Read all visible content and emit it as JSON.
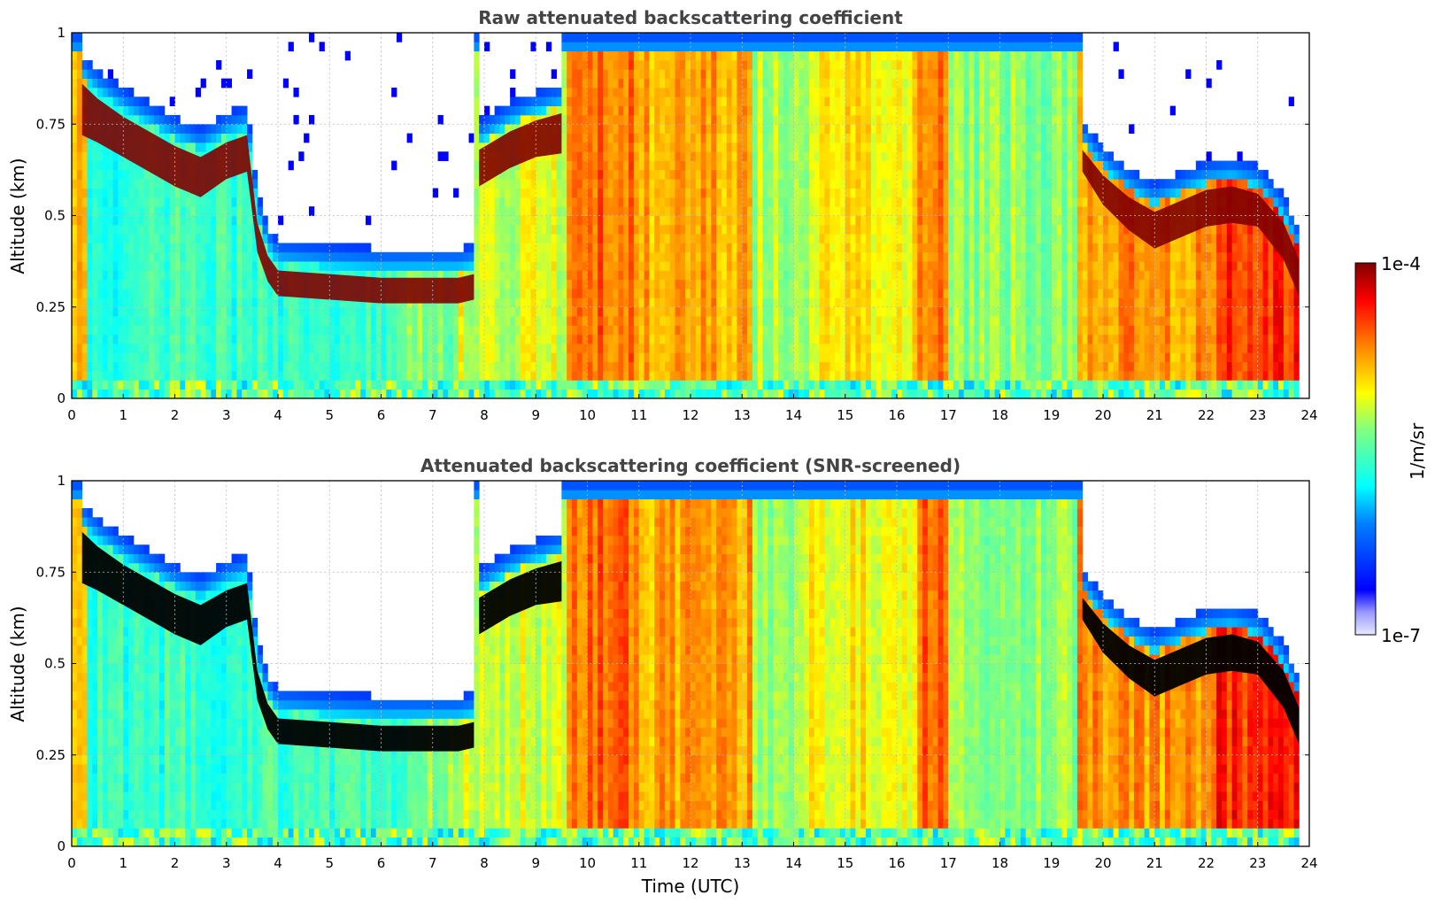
{
  "chart_data": [
    {
      "type": "heatmap",
      "title": "Raw attenuated backscattering coefficient",
      "xlabel": "",
      "ylabel": "Altitude (km)",
      "xlim": [
        0,
        24
      ],
      "ylim": [
        0,
        1
      ],
      "x_ticks": [
        "0",
        "1",
        "2",
        "3",
        "4",
        "5",
        "6",
        "7",
        "8",
        "9",
        "10",
        "11",
        "12",
        "13",
        "14",
        "15",
        "16",
        "17",
        "18",
        "19",
        "20",
        "21",
        "22",
        "23",
        "24"
      ],
      "y_ticks": [
        "0",
        "0.25",
        "0.5",
        "0.75",
        "1"
      ],
      "grid": true,
      "screened": false,
      "cloud_layer": {
        "time": [
          0.2,
          0.5,
          1.0,
          1.5,
          2.0,
          2.5,
          3.0,
          3.4,
          3.6,
          3.8,
          4.0,
          5.0,
          6.0,
          6.5,
          7.0,
          7.5,
          7.8
        ],
        "base_alt": [
          0.72,
          0.7,
          0.66,
          0.62,
          0.58,
          0.55,
          0.6,
          0.62,
          0.4,
          0.32,
          0.28,
          0.27,
          0.26,
          0.26,
          0.26,
          0.26,
          0.27
        ],
        "top_alt": [
          0.86,
          0.82,
          0.77,
          0.73,
          0.69,
          0.66,
          0.7,
          0.72,
          0.48,
          0.39,
          0.35,
          0.34,
          0.33,
          0.33,
          0.33,
          0.33,
          0.34
        ]
      },
      "cloud_layer_2": {
        "time": [
          7.9,
          8.5,
          9.0,
          9.5
        ],
        "base_alt": [
          0.58,
          0.63,
          0.66,
          0.67
        ],
        "top_alt": [
          0.68,
          0.73,
          0.76,
          0.78
        ]
      },
      "cloud_layer_3": {
        "time": [
          19.6,
          20.0,
          20.5,
          21.0,
          21.5,
          22.0,
          22.5,
          23.0,
          23.5,
          23.8
        ],
        "base_alt": [
          0.62,
          0.53,
          0.46,
          0.41,
          0.44,
          0.47,
          0.48,
          0.47,
          0.38,
          0.28
        ],
        "top_alt": [
          0.68,
          0.61,
          0.55,
          0.51,
          0.54,
          0.57,
          0.58,
          0.56,
          0.48,
          0.38
        ]
      }
    },
    {
      "type": "heatmap",
      "title": "Attenuated backscattering coefficient (SNR-screened)",
      "xlabel": "Time (UTC)",
      "ylabel": "Altitude (km)",
      "xlim": [
        0,
        24
      ],
      "ylim": [
        0,
        1
      ],
      "x_ticks": [
        "0",
        "1",
        "2",
        "3",
        "4",
        "5",
        "6",
        "7",
        "8",
        "9",
        "10",
        "11",
        "12",
        "13",
        "14",
        "15",
        "16",
        "17",
        "18",
        "19",
        "20",
        "21",
        "22",
        "23",
        "24"
      ],
      "y_ticks": [
        "0",
        "0.25",
        "0.5",
        "0.75",
        "1"
      ],
      "grid": true,
      "screened": true
    }
  ],
  "colorbar": {
    "label": "1/m/sr",
    "max_label": "1e-4",
    "min_label": "1e-7",
    "scale": "log",
    "colormap": "jet",
    "range": [
      1e-07,
      0.0001
    ]
  },
  "colors": {
    "title": "#444444",
    "grid": "#bbbbbb",
    "screened_cloud": "#000000",
    "cloud_core": "#800000"
  }
}
